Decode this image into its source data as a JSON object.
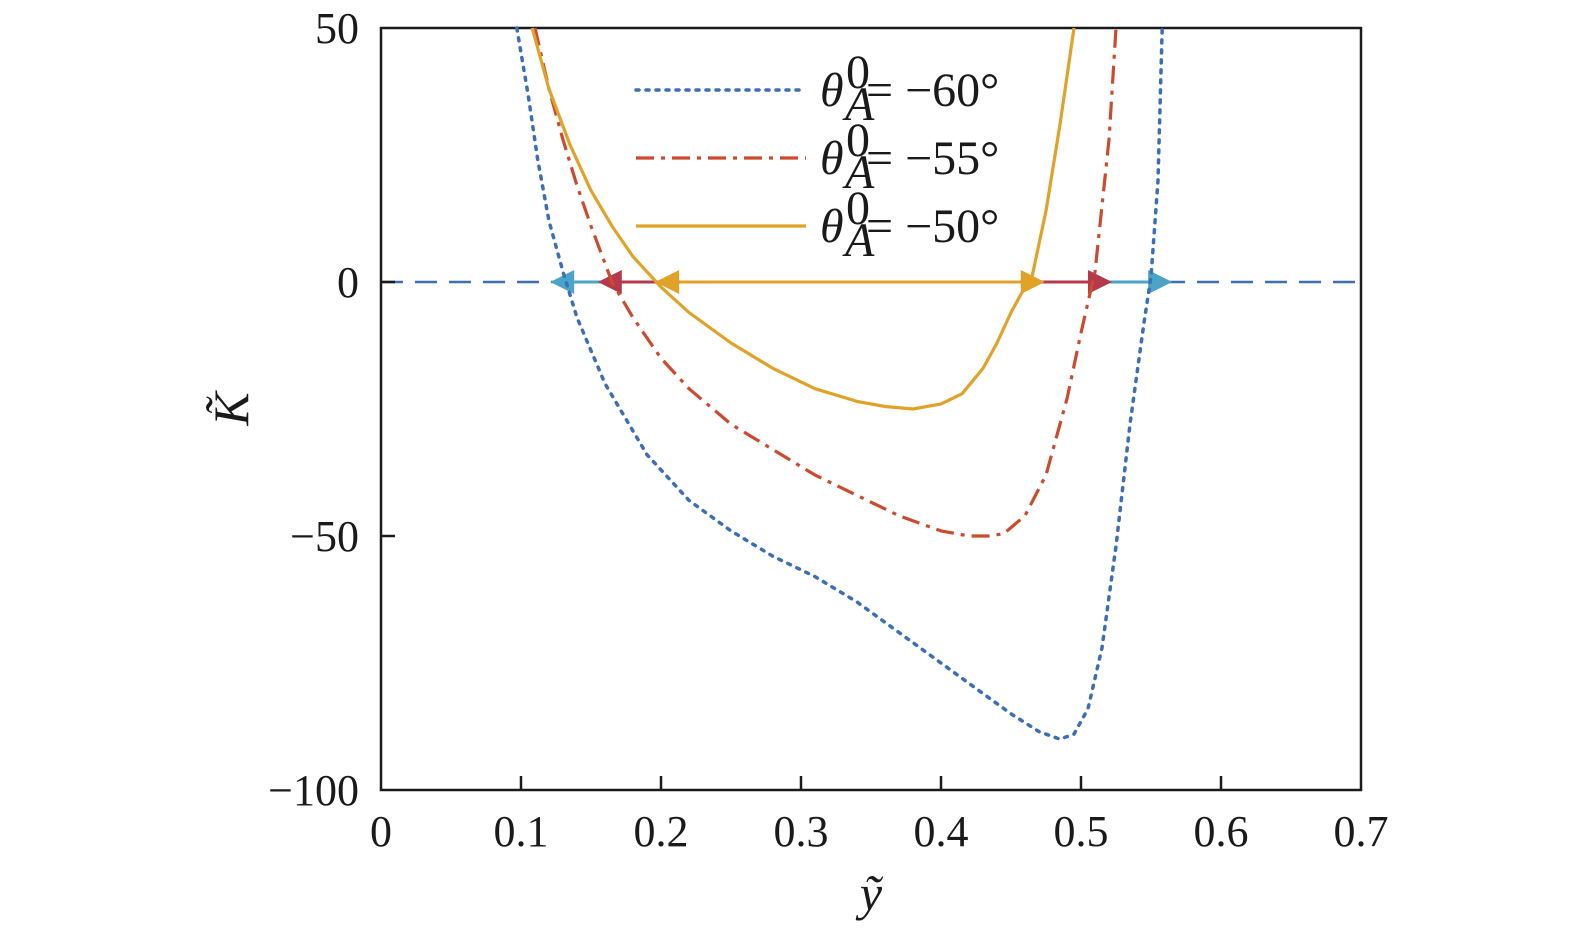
{
  "chart_data": {
    "type": "line",
    "xlabel": "ỹ",
    "ylabel": "K̃",
    "xlim": [
      0,
      0.7
    ],
    "ylim": [
      -100,
      50
    ],
    "xticks": [
      "0",
      "0.1",
      "0.2",
      "0.3",
      "0.4",
      "0.5",
      "0.6",
      "0.7"
    ],
    "yticks": [
      "50",
      "0",
      "−50",
      "−100"
    ],
    "xtick_values": [
      0,
      0.1,
      0.2,
      0.3,
      0.4,
      0.5,
      0.6,
      0.7
    ],
    "ytick_values": [
      50,
      0,
      -50,
      -100
    ],
    "grid": false,
    "legend_position": "top-center",
    "reference_line": {
      "y": 0,
      "style": "dashed",
      "color": "#3c6fb6"
    },
    "series": [
      {
        "name": "θA0 = −60°",
        "legend": {
          "sym": "θ",
          "sup": "0",
          "sub": "A",
          "rest": " = −60°"
        },
        "style": "dotted",
        "color": "#3c6fb6",
        "x": [
          0.097,
          0.105,
          0.112,
          0.12,
          0.13,
          0.14,
          0.16,
          0.19,
          0.22,
          0.25,
          0.28,
          0.31,
          0.34,
          0.37,
          0.4,
          0.43,
          0.45,
          0.47,
          0.485,
          0.495,
          0.505,
          0.515,
          0.525,
          0.535,
          0.545,
          0.55,
          0.555,
          0.558
        ],
        "y": [
          50,
          37,
          24,
          12,
          2,
          -7,
          -20,
          -34,
          -43,
          -49,
          -54,
          -58,
          -63,
          -69,
          -75,
          -81,
          -85,
          -88.5,
          -90,
          -89,
          -84,
          -72,
          -52,
          -28,
          -8,
          1,
          20,
          50
        ]
      },
      {
        "name": "θA0 = −55°",
        "legend": {
          "sym": "θ",
          "sup": "0",
          "sub": "A",
          "rest": " = −55°"
        },
        "style": "dashdot",
        "color": "#cc4b2e",
        "x": [
          0.11,
          0.12,
          0.13,
          0.14,
          0.15,
          0.165,
          0.18,
          0.2,
          0.22,
          0.25,
          0.28,
          0.31,
          0.34,
          0.37,
          0.4,
          0.42,
          0.435,
          0.445,
          0.46,
          0.475,
          0.49,
          0.5,
          0.51,
          0.52,
          0.525
        ],
        "y": [
          50,
          38,
          28,
          19,
          11,
          0,
          -7,
          -15,
          -21,
          -28,
          -33,
          -38,
          -42,
          -46,
          -49,
          -50,
          -50,
          -49.5,
          -46,
          -38,
          -23,
          -10,
          2,
          28,
          50
        ]
      },
      {
        "name": "θA0 = −50°",
        "legend": {
          "sym": "θ",
          "sup": "0",
          "sub": "A",
          "rest": " = −50°"
        },
        "style": "solid",
        "color": "#e0a228",
        "x": [
          0.108,
          0.12,
          0.135,
          0.15,
          0.165,
          0.18,
          0.2,
          0.22,
          0.25,
          0.28,
          0.31,
          0.34,
          0.36,
          0.38,
          0.4,
          0.415,
          0.43,
          0.44,
          0.45,
          0.46,
          0.465,
          0.475,
          0.485,
          0.495
        ],
        "y": [
          50,
          38,
          27,
          18,
          11,
          5,
          -1,
          -6,
          -12,
          -17,
          -21,
          -23.5,
          -24.5,
          -25,
          -24,
          -22,
          -17,
          -12,
          -6,
          -1,
          1,
          14,
          31,
          50
        ]
      }
    ],
    "arrows": [
      {
        "x1": 0.138,
        "x2": 0.548,
        "color": "#4ba3c7"
      },
      {
        "x1": 0.172,
        "x2": 0.505,
        "color": "#b5394d"
      },
      {
        "x1": 0.213,
        "x2": 0.457,
        "color": "#e0a228"
      }
    ]
  }
}
